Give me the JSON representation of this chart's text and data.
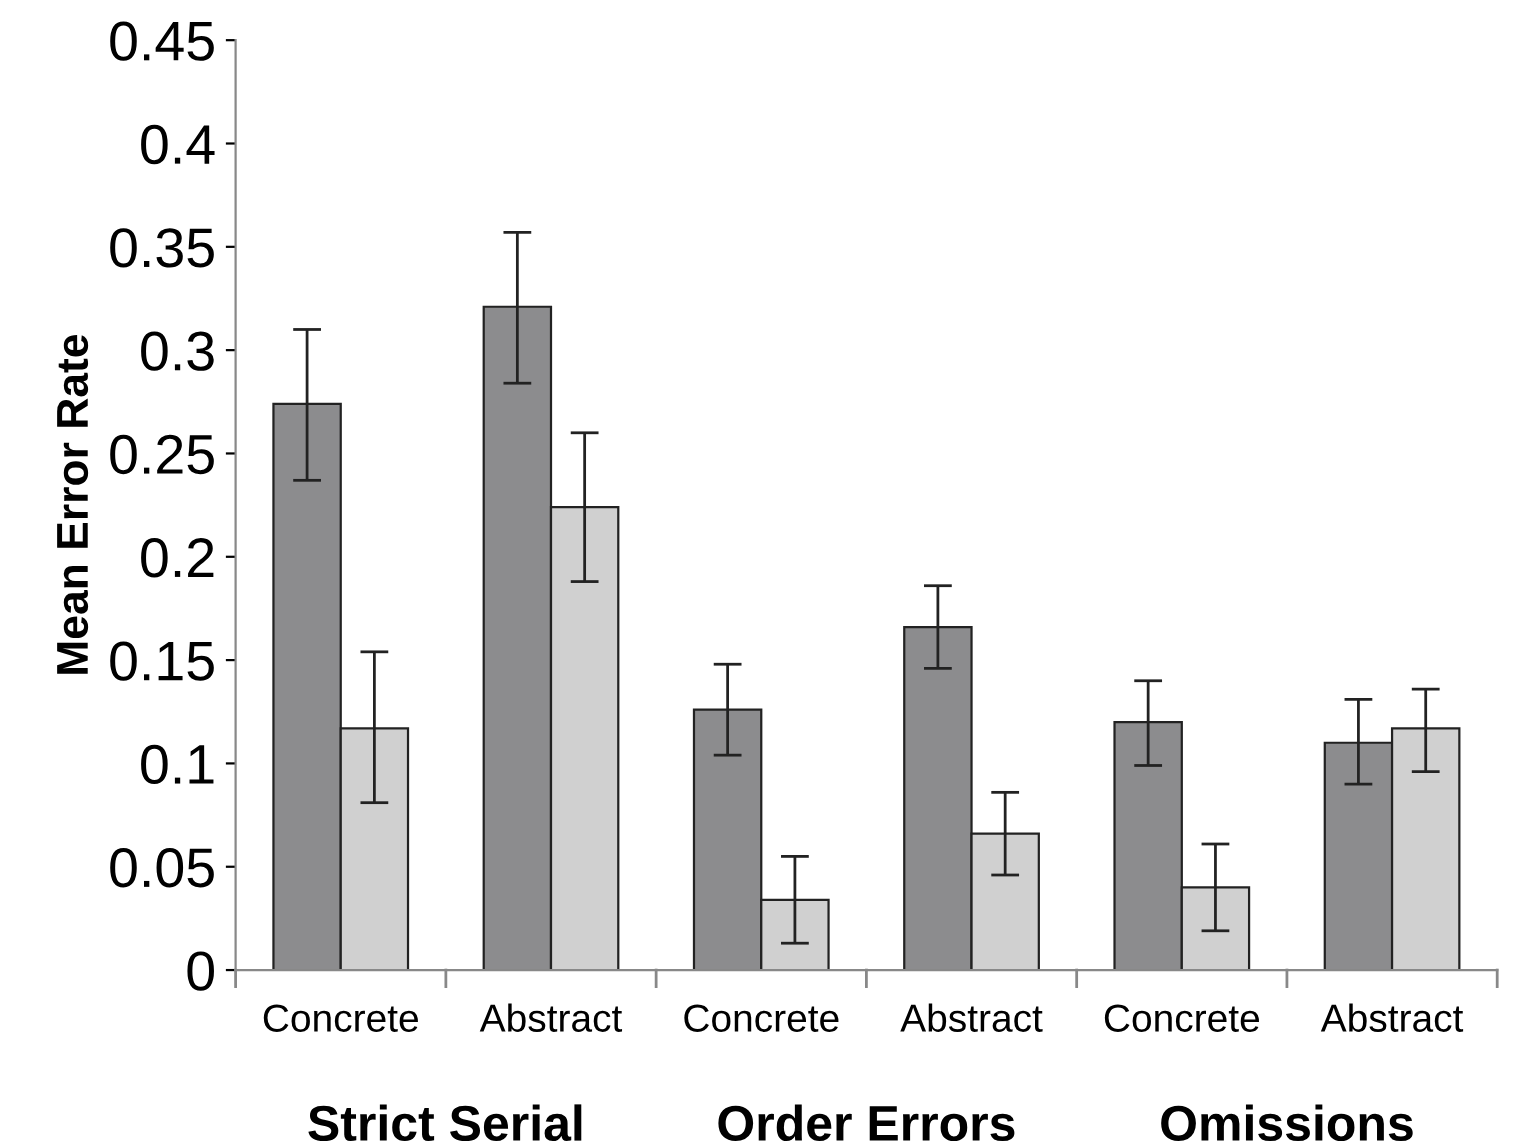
{
  "chart_data": {
    "type": "bar",
    "ylabel": "Mean Error Rate",
    "categories": [
      "Concrete",
      "Abstract",
      "Concrete",
      "Abstract",
      "Concrete",
      "Abstract"
    ],
    "series": [
      {
        "color": "#8c8c8e",
        "values": [
          0.274,
          0.321,
          0.126,
          0.166,
          0.12,
          0.11
        ],
        "errors": [
          [
            0.237,
            0.31
          ],
          [
            0.284,
            0.357
          ],
          [
            0.104,
            0.148
          ],
          [
            0.146,
            0.186
          ],
          [
            0.099,
            0.14
          ],
          [
            0.09,
            0.131
          ]
        ]
      },
      {
        "color": "#d0d0d0",
        "values": [
          0.117,
          0.224,
          0.034,
          0.066,
          0.04,
          0.117
        ],
        "errors": [
          [
            0.081,
            0.154
          ],
          [
            0.188,
            0.26
          ],
          [
            0.013,
            0.055
          ],
          [
            0.046,
            0.086
          ],
          [
            0.019,
            0.061
          ],
          [
            0.096,
            0.136
          ]
        ]
      }
    ],
    "annotations": [
      "Strict Serial",
      "Order Errors",
      "Omissions"
    ],
    "ylim": [
      0,
      0.45
    ],
    "yticks": [
      {
        "value": 0,
        "label": "0"
      },
      0.05,
      {
        "value": 0.1,
        "label": "0.1"
      },
      0.15,
      {
        "value": 0.2,
        "label": "0.2"
      },
      0.25,
      {
        "value": 0.3,
        "label": "0.3"
      },
      0.35,
      {
        "value": 0.4,
        "label": "0.4"
      },
      0.45
    ],
    "grid": false,
    "legend": false
  }
}
